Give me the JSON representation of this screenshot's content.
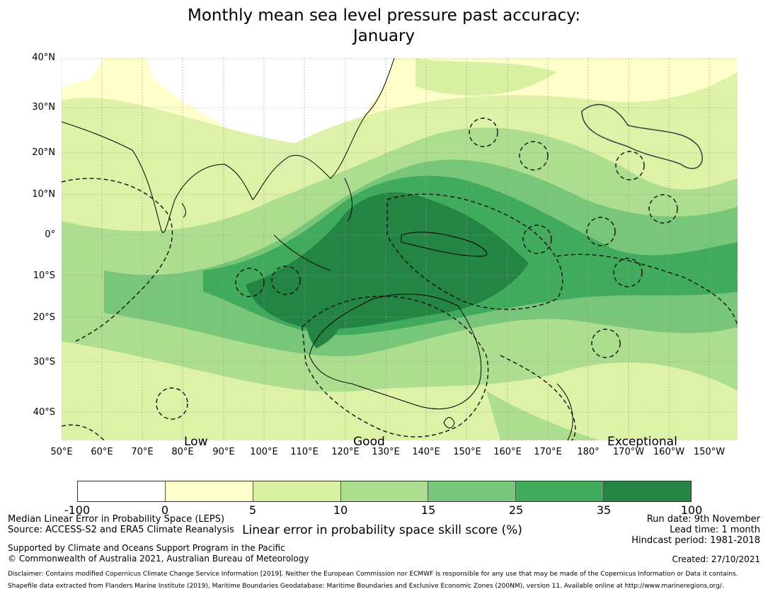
{
  "title": {
    "line1": "Monthly mean sea level pressure past accuracy:",
    "line2": "January"
  },
  "map": {
    "lat_labels": [
      "40°N",
      "30°N",
      "20°N",
      "10°N",
      "0°",
      "10°S",
      "20°S",
      "30°S",
      "40°S"
    ],
    "lon_labels": [
      "50°E",
      "60°E",
      "70°E",
      "80°E",
      "90°E",
      "100°E",
      "110°E",
      "120°E",
      "130°E",
      "140°E",
      "150°E",
      "160°E",
      "170°E",
      "180°",
      "170°W",
      "160°W",
      "150°W"
    ],
    "category_labels": {
      "low": "Low",
      "good": "Good",
      "exceptional": "Exceptional"
    }
  },
  "colorbar": {
    "ticks": [
      "-100",
      "0",
      "5",
      "10",
      "15",
      "25",
      "35",
      "100"
    ],
    "colors": [
      "#ffffff",
      "#ffffcc",
      "#d9f0a3",
      "#addd8e",
      "#78c679",
      "#41ab5d",
      "#238443"
    ],
    "label": "Linear error in probability space skill score (%)"
  },
  "info": {
    "method": "Median Linear Error in Probability Space (LEPS)",
    "source": "Source: ACCESS-S2 and ERA5 Climate Reanalysis",
    "support": "Supported by Climate and Oceans Support Program in the Pacific",
    "copyright": "© Commonwealth of Australia 2021, Australian Bureau of Meteorology",
    "run_date": "Run date: 9th November",
    "lead_time": "Lead time: 1 month",
    "hindcast": "Hindcast period: 1981-2018",
    "created": "Created: 27/10/2021",
    "disclaimer": "Disclaimer: Contains modified Copernicus Climate Change Service Information [2019]. Neither the European Commission nor ECMWF is responsible for any use that may be made of the Copernicus Information or Data it contains.",
    "shapefile": "Shapefile data extracted from Flanders Marine Institute (2019), Maritime Boundaries Geodatabase: Maritime Boundaries and Exclusive Economic Zones (200NM), version 11. Available online at http://www.marineregions.org/."
  },
  "icons": {
    "map": "sea-level-pressure-skill-map"
  }
}
